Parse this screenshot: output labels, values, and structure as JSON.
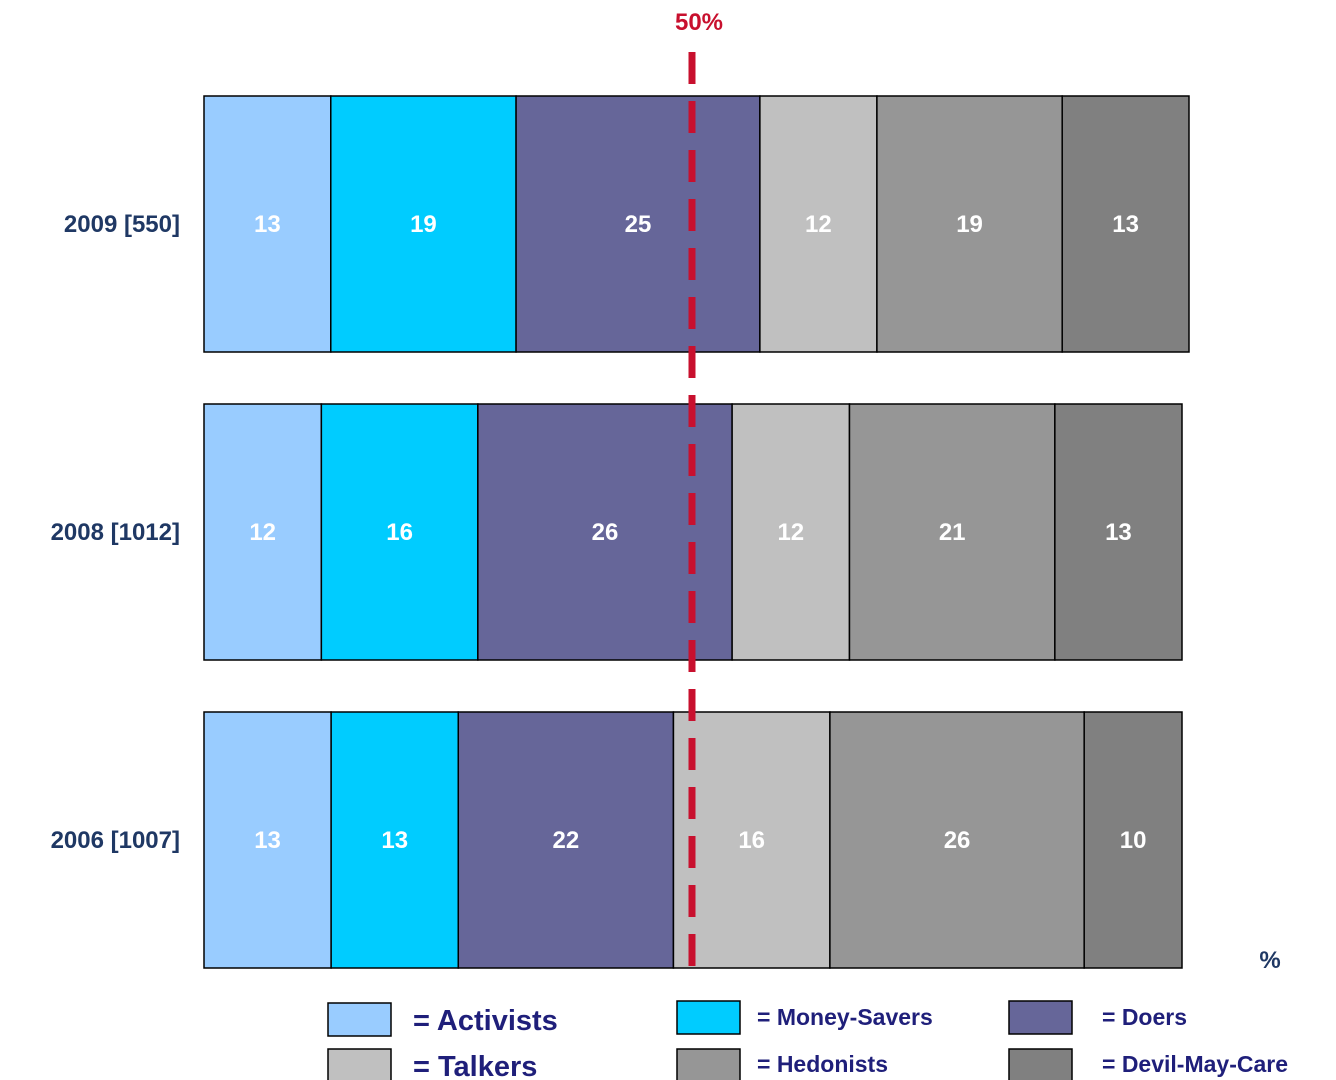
{
  "chart_data": {
    "type": "bar",
    "orientation": "horizontal",
    "stacked": true,
    "unit_label": "%",
    "categories": [
      "2009 [550]",
      "2008 [1012]",
      "2006 [1007]"
    ],
    "series": [
      {
        "name": "Activists",
        "legend_label": "= Activists",
        "color": "#99ccff",
        "values": [
          13,
          12,
          13
        ],
        "labels": [
          "13",
          "12",
          "13"
        ]
      },
      {
        "name": "Money-Savers",
        "legend_label": "= Money-Savers",
        "color": "#00ccff",
        "values": [
          19,
          16,
          13
        ],
        "labels": [
          "19",
          "16",
          "13"
        ]
      },
      {
        "name": "Doers",
        "legend_label": "=  Doers",
        "color": "#666699",
        "values": [
          25,
          26,
          22
        ],
        "labels": [
          "25",
          "26",
          "22"
        ]
      },
      {
        "name": "Talkers",
        "legend_label": "= Talkers",
        "color": "#c0c0c0",
        "values": [
          12,
          12,
          16
        ],
        "labels": [
          "12",
          "12",
          "16"
        ]
      },
      {
        "name": "Hedonists",
        "legend_label": "= Hedonists",
        "color": "#969696",
        "values": [
          19,
          21,
          26
        ],
        "labels": [
          "19",
          "21",
          "26"
        ]
      },
      {
        "name": "Devil-May-Care",
        "legend_label": "=  Devil-May-Care",
        "color": "#808080",
        "values": [
          13,
          13,
          10
        ],
        "labels": [
          "13",
          "13",
          "10"
        ]
      }
    ],
    "reference_line": {
      "value": 50,
      "label": "50%",
      "color": "#c8102e",
      "style": "dashed"
    },
    "legend_position": "bottom",
    "grid": false
  }
}
